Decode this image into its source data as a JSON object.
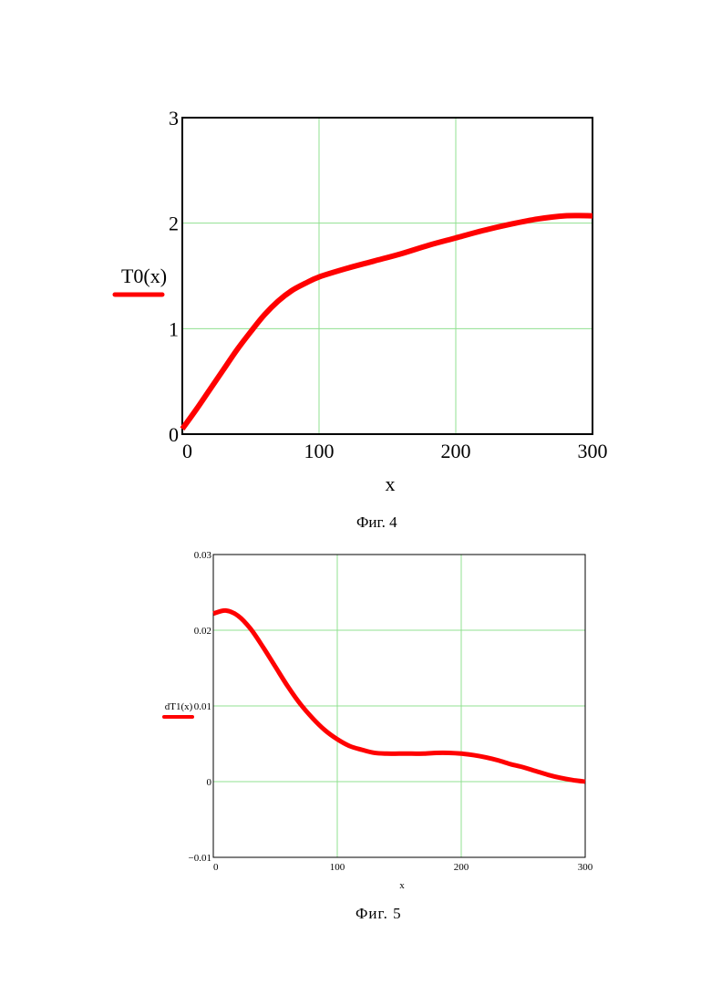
{
  "figures": [
    {
      "caption": "Фиг. 4",
      "chart_data": {
        "type": "line",
        "xlabel": "x",
        "ylabel": "T0(x)",
        "xlim": [
          0,
          300
        ],
        "ylim": [
          0,
          3
        ],
        "xticks": [
          0,
          100,
          200,
          300
        ],
        "xtick_labels": [
          "0",
          "100",
          "200",
          "300"
        ],
        "yticks": [
          0,
          1,
          2,
          3
        ],
        "ytick_labels": [
          "0",
          "1",
          "2",
          "3"
        ],
        "grid": true,
        "series": [
          {
            "color": "#ff0000",
            "x": [
              0,
              10,
              20,
              30,
              40,
              50,
              60,
              70,
              80,
              90,
              100,
              120,
              140,
              160,
              180,
              200,
              220,
              240,
              260,
              280,
              300
            ],
            "y": [
              0.05,
              0.23,
              0.42,
              0.61,
              0.8,
              0.97,
              1.13,
              1.26,
              1.36,
              1.43,
              1.49,
              1.57,
              1.64,
              1.71,
              1.79,
              1.86,
              1.93,
              1.99,
              2.04,
              2.07,
              2.07
            ]
          }
        ]
      }
    },
    {
      "caption": "Фиг.  5",
      "chart_data": {
        "type": "line",
        "xlabel": "x",
        "ylabel": "dT1(x)",
        "xlim": [
          0,
          300
        ],
        "ylim": [
          -0.01,
          0.03
        ],
        "xticks": [
          0,
          100,
          200,
          300
        ],
        "xtick_labels": [
          "0",
          "100",
          "200",
          "300"
        ],
        "yticks": [
          -0.01,
          0,
          0.01,
          0.02,
          0.03
        ],
        "ytick_labels": [
          "−0.01",
          "0",
          "0.01",
          "0.02",
          "0.03"
        ],
        "grid": true,
        "series": [
          {
            "color": "#ff0000",
            "x": [
              0,
              10,
              20,
              30,
              40,
              50,
              60,
              70,
              80,
              90,
              100,
              110,
              120,
              130,
              140,
              150,
              160,
              170,
              180,
              190,
              200,
              210,
              220,
              230,
              240,
              250,
              260,
              270,
              280,
              290,
              300
            ],
            "y": [
              0.0222,
              0.0226,
              0.0219,
              0.0202,
              0.0178,
              0.0152,
              0.0126,
              0.0103,
              0.0084,
              0.0068,
              0.0056,
              0.0047,
              0.0042,
              0.0038,
              0.0037,
              0.0037,
              0.0037,
              0.0037,
              0.0038,
              0.0038,
              0.0037,
              0.0035,
              0.0032,
              0.0028,
              0.0023,
              0.0019,
              0.0014,
              0.0009,
              0.0005,
              0.0002,
              0.0
            ]
          }
        ]
      }
    }
  ]
}
